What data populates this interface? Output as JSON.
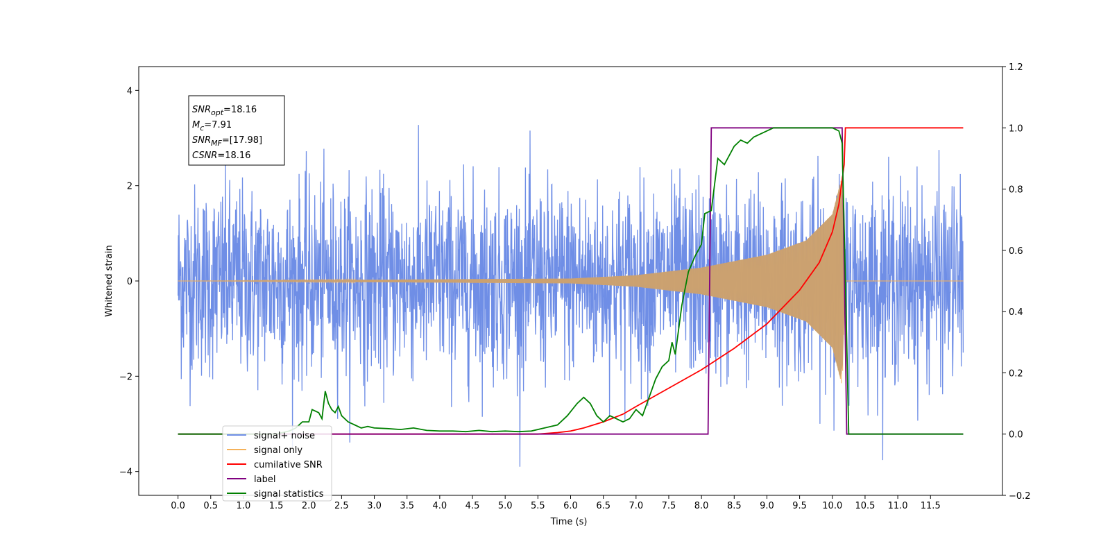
{
  "chart_data": {
    "type": "line",
    "xlabel": "Time (s)",
    "ylabel_left": "Whitened strain",
    "ylabel_right": "",
    "xlim": [
      -0.6,
      12.6
    ],
    "ylim_left": [
      -4.5,
      4.5
    ],
    "ylim_right": [
      -0.2,
      1.2
    ],
    "x_ticks": [
      "0.0",
      "0.5",
      "1.0",
      "1.5",
      "2.0",
      "2.5",
      "3.0",
      "3.5",
      "4.0",
      "4.5",
      "5.0",
      "5.5",
      "6.0",
      "6.5",
      "7.0",
      "7.5",
      "8.0",
      "8.5",
      "9.0",
      "9.5",
      "10.0",
      "10.5",
      "11.0",
      "11.5"
    ],
    "y_ticks_left": [
      "−4",
      "−2",
      "0",
      "2",
      "4"
    ],
    "y_ticks_right": [
      "−0.2",
      "0.0",
      "0.2",
      "0.4",
      "0.6",
      "0.8",
      "1.0",
      "1.2"
    ],
    "grid": false,
    "legend_position": "lower-left",
    "stats_box": {
      "lines": [
        {
          "name": "SNR",
          "sub": "opt",
          "value": "=18.16"
        },
        {
          "name": "M",
          "sub": "c",
          "value": "=7.91"
        },
        {
          "name": "SNR",
          "sub": "MF",
          "value": "=[17.98]"
        },
        {
          "name": "CSNR",
          "sub": "",
          "value": "=18.16"
        }
      ]
    },
    "series": [
      {
        "name": "signal+ noise",
        "axis": "left",
        "color": "#6f8ee6",
        "kind": "noise",
        "x_range": [
          0.0,
          12.0
        ],
        "noise_std": 1.0,
        "y_extent": [
          -3.9,
          4.1
        ]
      },
      {
        "name": "signal only",
        "axis": "left",
        "color": "#f5b25a",
        "kind": "chirp",
        "x_range": [
          0.0,
          12.0
        ],
        "coalescence_time": 10.2,
        "amplitude_envelope": [
          [
            0.0,
            0.0
          ],
          [
            6.0,
            0.05
          ],
          [
            7.0,
            0.12
          ],
          [
            8.0,
            0.28
          ],
          [
            9.0,
            0.55
          ],
          [
            9.6,
            0.85
          ],
          [
            10.0,
            1.4
          ],
          [
            10.15,
            2.2
          ],
          [
            10.2,
            0.0
          ],
          [
            12.0,
            0.0
          ]
        ]
      },
      {
        "name": "cumilative SNR",
        "axis": "right",
        "color": "#ff0000",
        "points": [
          [
            0.0,
            0.0
          ],
          [
            5.5,
            0.0
          ],
          [
            5.8,
            0.005
          ],
          [
            6.0,
            0.01
          ],
          [
            6.2,
            0.02
          ],
          [
            6.5,
            0.04
          ],
          [
            6.8,
            0.065
          ],
          [
            7.0,
            0.09
          ],
          [
            7.5,
            0.15
          ],
          [
            8.0,
            0.21
          ],
          [
            8.5,
            0.28
          ],
          [
            9.0,
            0.36
          ],
          [
            9.5,
            0.47
          ],
          [
            9.8,
            0.56
          ],
          [
            10.0,
            0.66
          ],
          [
            10.1,
            0.75
          ],
          [
            10.18,
            0.88
          ],
          [
            10.2,
            1.0
          ],
          [
            12.0,
            1.0
          ]
        ]
      },
      {
        "name": "label",
        "axis": "right",
        "color": "#800080",
        "points": [
          [
            0.0,
            0.0
          ],
          [
            8.1,
            0.0
          ],
          [
            8.15,
            1.0
          ],
          [
            10.15,
            1.0
          ],
          [
            10.22,
            0.0
          ],
          [
            12.0,
            0.0
          ]
        ]
      },
      {
        "name": "signal statistics",
        "axis": "right",
        "color": "#008000",
        "points": [
          [
            0.0,
            0.0
          ],
          [
            1.5,
            0.0
          ],
          [
            1.7,
            0.01
          ],
          [
            1.8,
            0.02
          ],
          [
            1.9,
            0.04
          ],
          [
            2.0,
            0.04
          ],
          [
            2.05,
            0.08
          ],
          [
            2.15,
            0.07
          ],
          [
            2.2,
            0.05
          ],
          [
            2.25,
            0.14
          ],
          [
            2.3,
            0.1
          ],
          [
            2.35,
            0.08
          ],
          [
            2.4,
            0.07
          ],
          [
            2.45,
            0.09
          ],
          [
            2.5,
            0.06
          ],
          [
            2.6,
            0.04
          ],
          [
            2.7,
            0.03
          ],
          [
            2.8,
            0.02
          ],
          [
            2.9,
            0.025
          ],
          [
            3.0,
            0.02
          ],
          [
            3.2,
            0.018
          ],
          [
            3.4,
            0.015
          ],
          [
            3.6,
            0.02
          ],
          [
            3.8,
            0.012
          ],
          [
            4.0,
            0.01
          ],
          [
            4.2,
            0.01
          ],
          [
            4.4,
            0.008
          ],
          [
            4.6,
            0.012
          ],
          [
            4.8,
            0.008
          ],
          [
            5.0,
            0.01
          ],
          [
            5.2,
            0.008
          ],
          [
            5.4,
            0.01
          ],
          [
            5.6,
            0.02
          ],
          [
            5.8,
            0.03
          ],
          [
            5.95,
            0.06
          ],
          [
            6.1,
            0.1
          ],
          [
            6.2,
            0.12
          ],
          [
            6.3,
            0.1
          ],
          [
            6.4,
            0.06
          ],
          [
            6.5,
            0.04
          ],
          [
            6.6,
            0.06
          ],
          [
            6.7,
            0.05
          ],
          [
            6.8,
            0.04
          ],
          [
            6.9,
            0.05
          ],
          [
            7.0,
            0.08
          ],
          [
            7.1,
            0.06
          ],
          [
            7.2,
            0.12
          ],
          [
            7.3,
            0.18
          ],
          [
            7.4,
            0.22
          ],
          [
            7.5,
            0.24
          ],
          [
            7.55,
            0.3
          ],
          [
            7.6,
            0.26
          ],
          [
            7.7,
            0.42
          ],
          [
            7.8,
            0.53
          ],
          [
            7.9,
            0.58
          ],
          [
            8.0,
            0.62
          ],
          [
            8.05,
            0.72
          ],
          [
            8.15,
            0.73
          ],
          [
            8.25,
            0.9
          ],
          [
            8.35,
            0.88
          ],
          [
            8.5,
            0.94
          ],
          [
            8.6,
            0.96
          ],
          [
            8.7,
            0.95
          ],
          [
            8.8,
            0.97
          ],
          [
            9.0,
            0.99
          ],
          [
            9.1,
            1.0
          ],
          [
            10.0,
            1.0
          ],
          [
            10.1,
            0.99
          ],
          [
            10.15,
            0.95
          ],
          [
            10.2,
            0.5
          ],
          [
            10.25,
            0.0
          ],
          [
            12.0,
            0.0
          ]
        ]
      }
    ]
  }
}
